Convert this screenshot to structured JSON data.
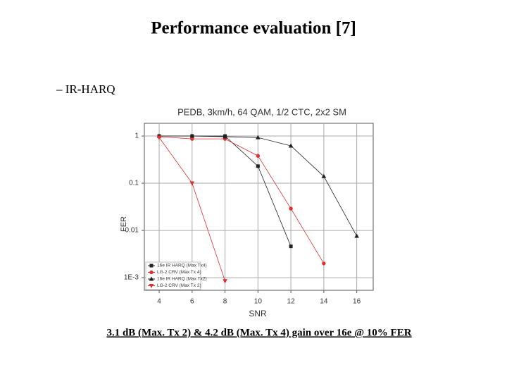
{
  "title": "Performance evaluation [7]",
  "bullet": "– IR-HARQ",
  "caption": "3.1 dB (Max. Tx 2) & 4.2 dB (Max. Tx 4) gain over 16e @ 10% FER",
  "chart_data": {
    "type": "line",
    "title": "PEDB, 3km/h, 64 QAM, 1/2 CTC, 2x2  SM",
    "x_label": "SNR",
    "y_label": "FER",
    "y_scale": "log",
    "grid": true,
    "legend": "lower left",
    "xlim": [
      3.1,
      17
    ],
    "xticks": [
      4,
      6,
      8,
      10,
      12,
      14,
      16
    ],
    "ylim": [
      0.00054,
      1.86
    ],
    "yticks": [
      1,
      0.1,
      0.01,
      {
        "value": 0.001,
        "label": "1E-3"
      }
    ],
    "series": [
      {
        "name": "16e IR HARQ (Max Tx4)",
        "color": "#222222",
        "marker": "square",
        "x": [
          4,
          6,
          8,
          10,
          12
        ],
        "values": [
          1,
          1,
          1,
          0.23,
          0.0046
        ]
      },
      {
        "name": "LG-2 CRV (Max Tx 4)",
        "color": "#e03030",
        "marker": "circle",
        "x": [
          4,
          6,
          8,
          10,
          12,
          14
        ],
        "values": [
          0.97,
          0.87,
          0.87,
          0.38,
          0.029,
          0.002
        ]
      },
      {
        "name": "16e IR HARQ (Max Tx2)",
        "color": "#222222",
        "marker": "triangle",
        "x": [
          4,
          6,
          8,
          10,
          12,
          14,
          16
        ],
        "values": [
          1,
          1,
          0.97,
          0.93,
          0.62,
          0.14,
          0.0076
        ]
      },
      {
        "name": "LG-2 CRV (Max Tx 2)",
        "color": "#e03030",
        "marker": "triangle-down",
        "x": [
          4,
          6,
          8
        ],
        "values": [
          0.93,
          0.1,
          0.00085
        ]
      }
    ]
  }
}
